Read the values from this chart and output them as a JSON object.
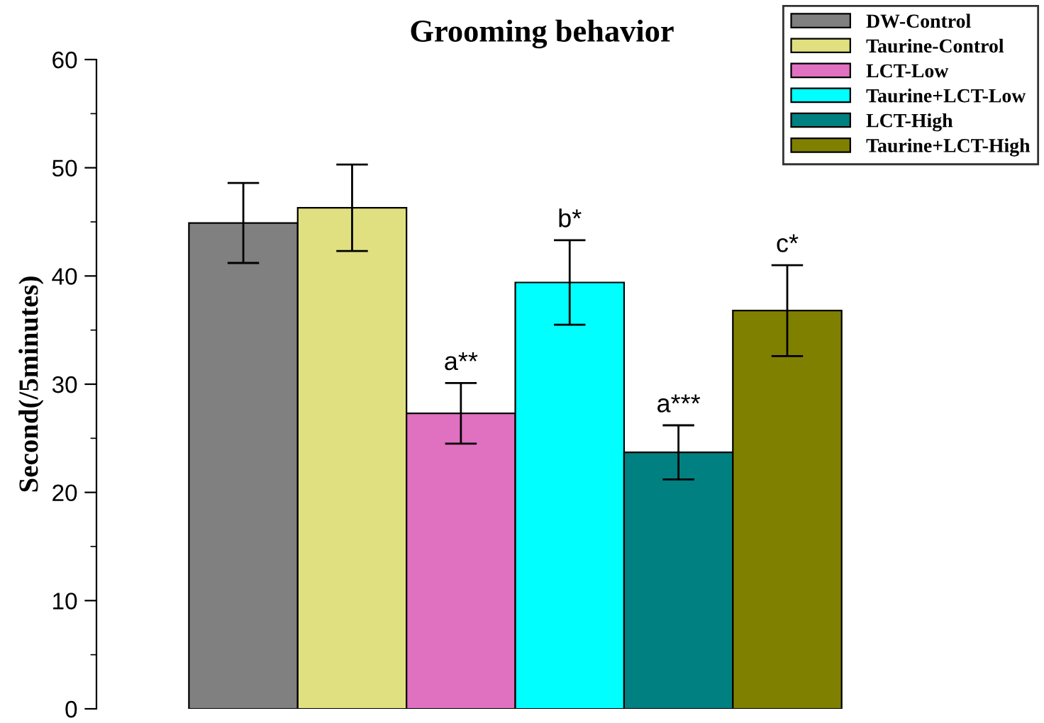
{
  "chart_data": {
    "type": "bar",
    "title": "Grooming behavior",
    "ylabel": "Second(/5minutes)",
    "categories": [
      null
    ],
    "series": [
      {
        "name": "DW-Control",
        "color": "#808080",
        "values": [
          44.9
        ],
        "errors": [
          3.7
        ]
      },
      {
        "name": "Taurine-Control",
        "color": "#e0e080",
        "values": [
          46.3
        ],
        "errors": [
          4.0
        ]
      },
      {
        "name": "LCT-Low",
        "color": "#e070c0",
        "values": [
          27.3
        ],
        "errors": [
          2.8
        ]
      },
      {
        "name": "Taurine+LCT-Low",
        "color": "#00ffff",
        "values": [
          39.4
        ],
        "errors": [
          3.9
        ]
      },
      {
        "name": "LCT-High",
        "color": "#008080",
        "values": [
          23.7
        ],
        "errors": [
          2.5
        ]
      },
      {
        "name": "Taurine+LCT-High",
        "color": "#808000",
        "values": [
          36.8
        ],
        "errors": [
          4.2
        ]
      }
    ],
    "annotations": [
      "a**",
      "b*",
      "a***",
      "c*"
    ],
    "ylim": [
      0,
      60
    ],
    "yticks": [
      0,
      10,
      20,
      30,
      40,
      50,
      60
    ],
    "tick_labels": "y",
    "legend": "top right",
    "grid": false
  }
}
